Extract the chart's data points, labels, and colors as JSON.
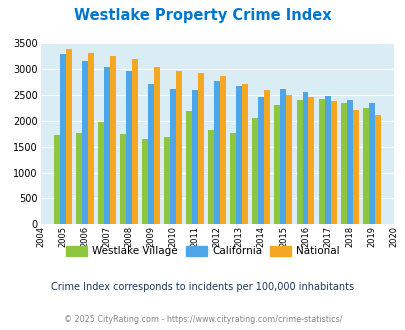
{
  "title": "Westlake Property Crime Index",
  "plot_years": [
    2005,
    2006,
    2007,
    2008,
    2009,
    2010,
    2011,
    2012,
    2013,
    2014,
    2015,
    2016,
    2017,
    2018,
    2019
  ],
  "all_tick_years": [
    2004,
    2005,
    2006,
    2007,
    2008,
    2009,
    2010,
    2011,
    2012,
    2013,
    2014,
    2015,
    2016,
    2017,
    2018,
    2019,
    2020
  ],
  "westlake": [
    1730,
    1760,
    1980,
    1740,
    1650,
    1680,
    2190,
    1830,
    1760,
    2060,
    2300,
    2400,
    2420,
    2350,
    2240
  ],
  "california": [
    3290,
    3150,
    3040,
    2960,
    2710,
    2620,
    2590,
    2770,
    2660,
    2460,
    2620,
    2550,
    2480,
    2400,
    2340
  ],
  "national": [
    3390,
    3300,
    3240,
    3190,
    3040,
    2950,
    2910,
    2870,
    2710,
    2590,
    2490,
    2460,
    2370,
    2200,
    2110
  ],
  "color_westlake": "#8dc63f",
  "color_california": "#4da6e8",
  "color_national": "#f5a623",
  "color_title": "#0077cc",
  "color_bg": "#daedf4",
  "ylim": [
    0,
    3500
  ],
  "yticks": [
    0,
    500,
    1000,
    1500,
    2000,
    2500,
    3000,
    3500
  ],
  "subtitle": "Crime Index corresponds to incidents per 100,000 inhabitants",
  "footer": "© 2025 CityRating.com - https://www.cityrating.com/crime-statistics/",
  "legend_labels": [
    "Westlake Village",
    "California",
    "National"
  ],
  "subtitle_color": "#1a3a5c",
  "footer_color": "#888888"
}
